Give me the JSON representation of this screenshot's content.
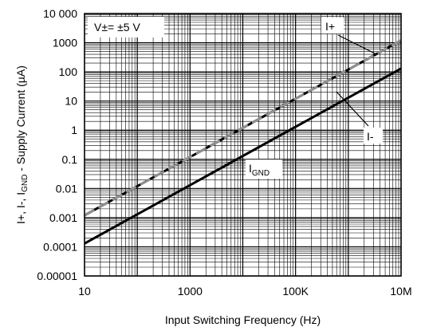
{
  "chart_data": {
    "type": "line",
    "xscale": "log",
    "yscale": "log",
    "xlim": [
      10,
      10000000
    ],
    "ylim": [
      1e-05,
      10000
    ],
    "grid": true,
    "xlabel": "Input Switching Frequency (Hz)",
    "ylabel": {
      "prefix": "I+, I-, I",
      "sub": "GND",
      "suffix": " - Supply Current (µA)"
    },
    "x_ticks": [
      {
        "value": 10,
        "label": "10"
      },
      {
        "value": 1000,
        "label": "1000"
      },
      {
        "value": 100000,
        "label": "100K"
      },
      {
        "value": 10000000,
        "label": "10M"
      }
    ],
    "y_ticks": [
      {
        "value": 10000,
        "label": "10 000"
      },
      {
        "value": 1000,
        "label": "1000"
      },
      {
        "value": 100,
        "label": "100"
      },
      {
        "value": 10,
        "label": "10"
      },
      {
        "value": 1,
        "label": "1"
      },
      {
        "value": 0.1,
        "label": "0.1"
      },
      {
        "value": 0.01,
        "label": "0.01"
      },
      {
        "value": 0.001,
        "label": "0.001"
      },
      {
        "value": 0.0001,
        "label": "0.0001"
      },
      {
        "value": 1e-05,
        "label": "0.00001"
      }
    ],
    "series": [
      {
        "name": "I+",
        "x": [
          10,
          10000000
        ],
        "y": [
          0.0012,
          1200
        ],
        "color": "#000000",
        "style": "solid"
      },
      {
        "name": "I-",
        "x": [
          10,
          10000000
        ],
        "y": [
          0.0012,
          1200
        ],
        "color": "#909090",
        "style": "dashed"
      },
      {
        "name": "IGND",
        "x": [
          10,
          10000000
        ],
        "y": [
          0.00013,
          130
        ],
        "color": "#000000",
        "style": "solid"
      }
    ],
    "annotations": [
      {
        "id": "condition",
        "text": "V±= ±5 V"
      },
      {
        "id": "iplus",
        "text": "I+"
      },
      {
        "id": "iminus",
        "text": "I-"
      },
      {
        "id": "ignd",
        "text": "I",
        "sub": "GND"
      }
    ]
  }
}
